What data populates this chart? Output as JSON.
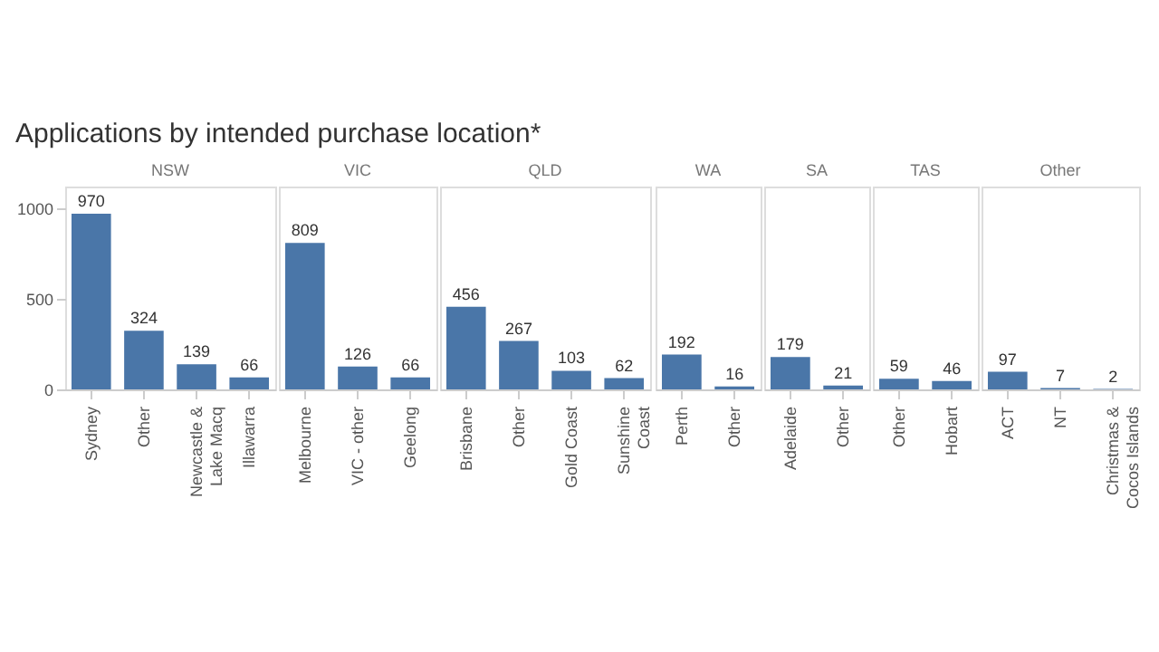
{
  "chart_data": [
    {
      "type": "bar",
      "title": "Applications by intended purchase location*",
      "xlabel": "NSW",
      "categories": [
        "Sydney",
        "Other",
        "Newcastle &\nLake Macq",
        "Illawarra"
      ],
      "values": [
        970,
        324,
        139,
        66
      ],
      "color": "#4a76a8",
      "ylim": [
        0,
        1120
      ],
      "yticks": [
        0,
        500,
        1000
      ],
      "data_labels": true
    },
    {
      "type": "bar",
      "xlabel": "VIC",
      "categories": [
        "Melbourne",
        "VIC - other",
        "Geelong"
      ],
      "values": [
        809,
        126,
        66
      ],
      "color": "#4a76a8",
      "ylim": [
        0,
        1120
      ],
      "yticks": [
        0,
        500,
        1000
      ],
      "data_labels": true,
      "tick_labels": "x"
    },
    {
      "type": "bar",
      "xlabel": "QLD",
      "categories": [
        "Brisbane",
        "Other",
        "Gold Coast",
        "Sunshine\nCoast"
      ],
      "values": [
        456,
        267,
        103,
        62
      ],
      "color": "#4a76a8",
      "ylim": [
        0,
        1120
      ],
      "yticks": [
        0,
        500,
        1000
      ],
      "data_labels": true,
      "tick_labels": "x"
    },
    {
      "type": "bar",
      "xlabel": "WA",
      "categories": [
        "Perth",
        "Other"
      ],
      "values": [
        192,
        16
      ],
      "color": "#4a76a8",
      "ylim": [
        0,
        1120
      ],
      "yticks": [
        0,
        500,
        1000
      ],
      "data_labels": true,
      "tick_labels": "x"
    },
    {
      "type": "bar",
      "xlabel": "SA",
      "categories": [
        "Adelaide",
        "Other"
      ],
      "values": [
        179,
        21
      ],
      "color": "#4a76a8",
      "ylim": [
        0,
        1120
      ],
      "yticks": [
        0,
        500,
        1000
      ],
      "data_labels": true,
      "tick_labels": "x"
    },
    {
      "type": "bar",
      "xlabel": "TAS",
      "categories": [
        "Other",
        "Hobart"
      ],
      "values": [
        59,
        46
      ],
      "color": "#4a76a8",
      "ylim": [
        0,
        1120
      ],
      "yticks": [
        0,
        500,
        1000
      ],
      "data_labels": true,
      "tick_labels": "x"
    },
    {
      "type": "bar",
      "xlabel": "Other",
      "categories": [
        "ACT",
        "NT",
        "Christmas &\nCocos Islands"
      ],
      "values": [
        97,
        7,
        2
      ],
      "color": "#4a76a8",
      "ylim": [
        0,
        1120
      ],
      "yticks": [
        0,
        500,
        1000
      ],
      "data_labels": true,
      "tick_labels": "x"
    }
  ]
}
